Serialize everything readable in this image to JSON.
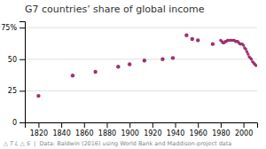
{
  "chart_data": {
    "type": "scatter",
    "title": "G7 countries’ share of global income",
    "annotations": [
      "△ T L △ S",
      "  |  Data: Baldwin (2016) using World Bank and Maddison-project data"
    ],
    "series": [
      {
        "color": "#a03070",
        "x": [
          1820,
          1850,
          1870,
          1890,
          1900,
          1913,
          1929,
          1938,
          1950,
          1955,
          1960,
          1973
        ],
        "values": [
          21,
          37,
          40,
          44,
          46,
          49,
          50,
          51,
          69,
          66,
          65,
          62
        ]
      },
      {
        "color": "#a03070",
        "x": [
          1980,
          1981,
          1982,
          1983,
          1984,
          1985,
          1986,
          1987,
          1988,
          1989,
          1990,
          1991,
          1992,
          1993,
          1994,
          1995,
          1996,
          1997,
          1998,
          1999,
          2000,
          2001,
          2002,
          2003,
          2004,
          2005,
          2006,
          2007,
          2008,
          2009,
          2010,
          2011
        ],
        "values": [
          65,
          64,
          63,
          63,
          64,
          64,
          65,
          65,
          65,
          65,
          65,
          65,
          65,
          64,
          64,
          64,
          63,
          62,
          62,
          62,
          61,
          59,
          58,
          56,
          54,
          52,
          51,
          50,
          48,
          47,
          46,
          45
        ]
      }
    ],
    "xlim": [
      1808,
      2012
    ],
    "ylim": [
      0,
      80
    ],
    "xticks": [
      1820,
      1840,
      1860,
      1880,
      1900,
      1920,
      1940,
      1960,
      1980,
      2000
    ],
    "yticks": [
      0,
      25,
      50,
      {
        "value": 75,
        "label": "75%"
      }
    ],
    "grid": true
  }
}
